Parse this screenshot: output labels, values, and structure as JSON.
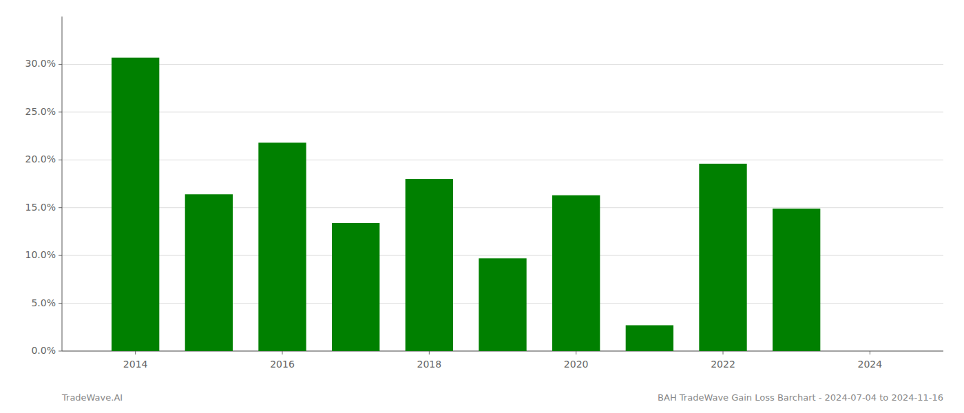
{
  "chart_data": {
    "type": "bar",
    "x": [
      2014,
      2015,
      2016,
      2017,
      2018,
      2019,
      2020,
      2021,
      2022,
      2023,
      2024
    ],
    "values": [
      0.307,
      0.164,
      0.218,
      0.134,
      0.18,
      0.097,
      0.163,
      0.027,
      0.196,
      0.149,
      null
    ],
    "color": "#008000",
    "xlim": [
      2013.0,
      2025.0
    ],
    "xticks": [
      2014,
      2016,
      2018,
      2020,
      2022,
      2024
    ],
    "ylim": [
      0.0,
      0.35
    ],
    "yticks": [
      {
        "value": 0.0,
        "label": "0.0%"
      },
      {
        "value": 0.05,
        "label": "5.0%"
      },
      {
        "value": 0.1,
        "label": "10.0%"
      },
      {
        "value": 0.15,
        "label": "15.0%"
      },
      {
        "value": 0.2,
        "label": "20.0%"
      },
      {
        "value": 0.25,
        "label": "25.0%"
      },
      {
        "value": 0.3,
        "label": "30.0%"
      }
    ],
    "grid": true,
    "annotations": [
      "TradeWave.AI",
      "BAH TradeWave Gain Loss Barchart - 2024-07-04 to 2024-11-16"
    ]
  }
}
